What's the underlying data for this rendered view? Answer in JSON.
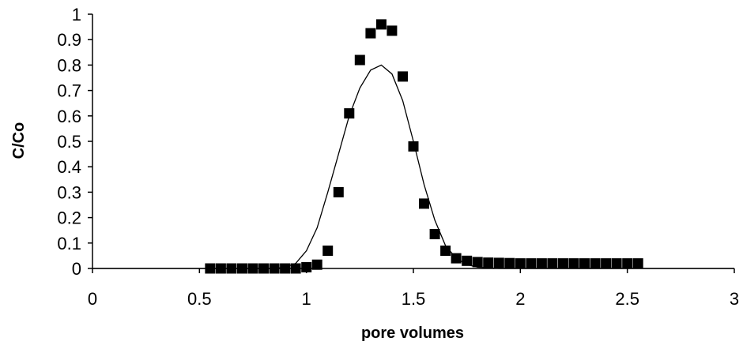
{
  "chart_data": {
    "type": "scatter",
    "title": "",
    "xlabel": "pore volumes",
    "ylabel": "C/Co",
    "xlim": [
      0,
      3
    ],
    "ylim": [
      0,
      1
    ],
    "x_ticks": [
      0,
      0.5,
      1,
      1.5,
      2,
      2.5,
      3
    ],
    "x_tick_labels": [
      "0",
      "0.5",
      "1",
      "1.5",
      "2",
      "2.5",
      "3"
    ],
    "y_ticks": [
      0,
      0.1,
      0.2,
      0.3,
      0.4,
      0.5,
      0.6,
      0.7,
      0.8,
      0.9,
      1
    ],
    "y_tick_labels": [
      "0",
      "0.1",
      "0.2",
      "0.3",
      "0.4",
      "0.5",
      "0.6",
      "0.7",
      "0.8",
      "0.9",
      "1"
    ],
    "grid": false,
    "legend": "none",
    "series": [
      {
        "kind": "markers",
        "marker": "square",
        "color": "#000000",
        "points": [
          [
            0.55,
            0.0
          ],
          [
            0.6,
            0.0
          ],
          [
            0.65,
            0.0
          ],
          [
            0.7,
            0.0
          ],
          [
            0.75,
            0.0
          ],
          [
            0.8,
            0.0
          ],
          [
            0.85,
            0.0
          ],
          [
            0.9,
            0.0
          ],
          [
            0.95,
            0.0
          ],
          [
            1.0,
            0.005
          ],
          [
            1.05,
            0.015
          ],
          [
            1.1,
            0.07
          ],
          [
            1.15,
            0.3
          ],
          [
            1.2,
            0.61
          ],
          [
            1.25,
            0.82
          ],
          [
            1.3,
            0.925
          ],
          [
            1.35,
            0.96
          ],
          [
            1.4,
            0.935
          ],
          [
            1.45,
            0.755
          ],
          [
            1.5,
            0.48
          ],
          [
            1.55,
            0.255
          ],
          [
            1.6,
            0.135
          ],
          [
            1.65,
            0.07
          ],
          [
            1.7,
            0.04
          ],
          [
            1.75,
            0.03
          ],
          [
            1.8,
            0.025
          ],
          [
            1.85,
            0.023
          ],
          [
            1.9,
            0.022
          ],
          [
            1.95,
            0.021
          ],
          [
            2.0,
            0.02
          ],
          [
            2.05,
            0.02
          ],
          [
            2.1,
            0.02
          ],
          [
            2.15,
            0.02
          ],
          [
            2.2,
            0.02
          ],
          [
            2.25,
            0.02
          ],
          [
            2.3,
            0.02
          ],
          [
            2.35,
            0.02
          ],
          [
            2.4,
            0.02
          ],
          [
            2.45,
            0.02
          ],
          [
            2.5,
            0.02
          ],
          [
            2.55,
            0.02
          ]
        ]
      },
      {
        "kind": "line",
        "color": "#000000",
        "points": [
          [
            0.0,
            0.0
          ],
          [
            0.5,
            0.0
          ],
          [
            0.85,
            0.0
          ],
          [
            0.9,
            0.005
          ],
          [
            0.95,
            0.02
          ],
          [
            1.0,
            0.07
          ],
          [
            1.05,
            0.16
          ],
          [
            1.1,
            0.3
          ],
          [
            1.15,
            0.45
          ],
          [
            1.2,
            0.6
          ],
          [
            1.25,
            0.71
          ],
          [
            1.3,
            0.78
          ],
          [
            1.35,
            0.8
          ],
          [
            1.4,
            0.765
          ],
          [
            1.45,
            0.66
          ],
          [
            1.5,
            0.5
          ],
          [
            1.55,
            0.33
          ],
          [
            1.6,
            0.19
          ],
          [
            1.65,
            0.09
          ],
          [
            1.7,
            0.04
          ],
          [
            1.75,
            0.015
          ],
          [
            1.8,
            0.005
          ],
          [
            1.9,
            0.0
          ],
          [
            2.5,
            0.0
          ],
          [
            3.0,
            0.0
          ]
        ]
      }
    ]
  }
}
